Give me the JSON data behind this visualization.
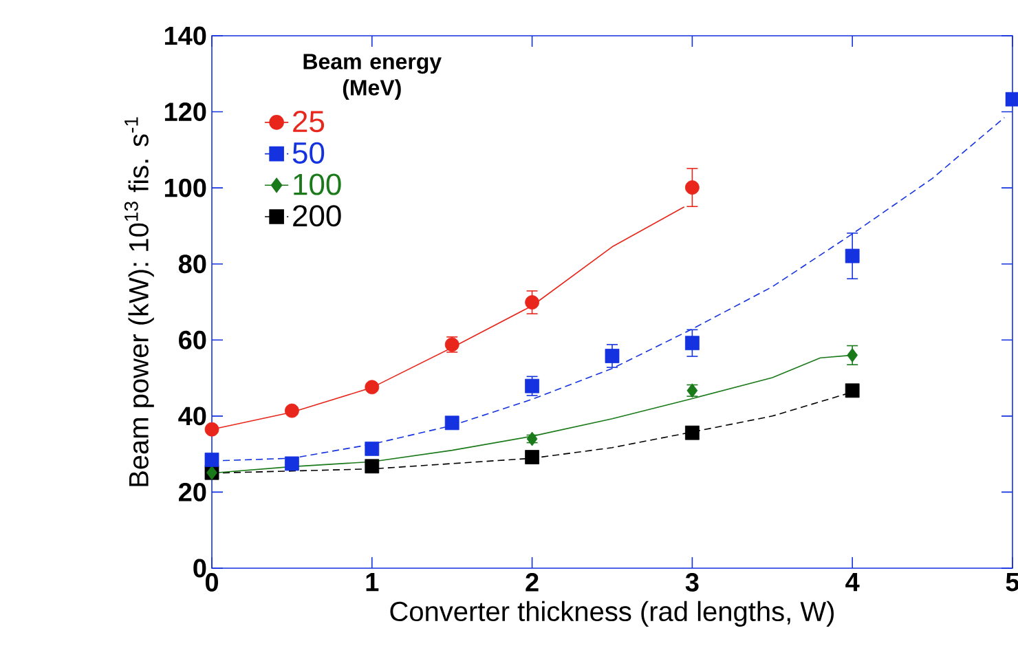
{
  "chart_data": {
    "type": "scatter",
    "xlabel": "Converter thickness (rad lengths, W)",
    "ylabel": "Beam power (kW): 10$^{13}$ fis. s$^{-1}$",
    "legend_title": "Beam energy (MeV)",
    "legend": "top left",
    "xlim": [
      0,
      5
    ],
    "xticks": [
      0,
      1,
      2,
      3,
      4,
      5
    ],
    "ylim": [
      0,
      140
    ],
    "yticks": [
      0,
      20,
      40,
      60,
      80,
      100,
      120,
      140
    ],
    "grid": false,
    "series": [
      {
        "name": "25",
        "color": "#e8261b",
        "marker": "circle",
        "line_style": "solid",
        "x": [
          0,
          0.5,
          1,
          1.5,
          2,
          3
        ],
        "values": [
          36.5,
          41.4,
          47.6,
          58.8,
          69.9,
          100.1
        ],
        "errors": [
          1,
          1,
          1,
          2,
          3,
          5
        ]
      },
      {
        "name": "50",
        "color": "#1432e0",
        "marker": "square",
        "line_style": "dashed",
        "x": [
          0,
          0.5,
          1,
          1.5,
          2,
          2.5,
          3,
          4,
          5
        ],
        "values": [
          28.5,
          27.5,
          31.4,
          38.2,
          47.9,
          55.8,
          59.2,
          82.1,
          123.3
        ],
        "errors": [
          1,
          1,
          1,
          1,
          2.5,
          3,
          3.5,
          6,
          null
        ]
      },
      {
        "name": "100",
        "color": "#1a7a1a",
        "marker": "diamond",
        "line_style": "solid",
        "x": [
          0,
          2,
          3,
          4
        ],
        "values": [
          25.1,
          34.0,
          46.7,
          56.0
        ],
        "errors": [
          null,
          1,
          1.5,
          2.5
        ]
      },
      {
        "name": "200",
        "color": "#000000",
        "marker": "square",
        "line_style": "dashed",
        "x": [
          0,
          1,
          2,
          3,
          4
        ],
        "values": [
          25.1,
          26.8,
          29.2,
          35.6,
          46.7
        ],
        "errors": [
          null,
          null,
          null,
          null,
          1
        ]
      },
      {
        "type": "line",
        "color": "#e8261b",
        "line_style": "solid",
        "x": [
          0,
          0.5,
          1,
          1.5,
          2,
          2.5,
          2.95
        ],
        "values": [
          36.5,
          41,
          47.5,
          58,
          69,
          84.5,
          95
        ]
      },
      {
        "type": "line",
        "color": "#1432e0",
        "line_style": "dashed",
        "x": [
          0,
          0.5,
          1,
          1.5,
          2,
          2.5,
          3,
          3.5,
          4,
          4.5,
          4.95
        ],
        "values": [
          28.2,
          28.9,
          32.6,
          37.5,
          44.4,
          52.5,
          62.9,
          74,
          87.9,
          102.5,
          118.5
        ]
      },
      {
        "type": "line",
        "color": "#1a7a1a",
        "line_style": "solid",
        "x": [
          0,
          0.5,
          1,
          1.5,
          2,
          2.5,
          3,
          3.5,
          3.8,
          4
        ],
        "values": [
          25,
          26.7,
          28,
          31,
          34.7,
          39.3,
          44.6,
          50.1,
          55.3,
          56
        ]
      },
      {
        "type": "line",
        "color": "#000000",
        "line_style": "dashed",
        "x": [
          0,
          1,
          1.5,
          2,
          2.5,
          3,
          3.5,
          4
        ],
        "values": [
          25,
          26.1,
          27.5,
          28.9,
          31.7,
          35.8,
          40,
          46.3
        ]
      }
    ]
  }
}
